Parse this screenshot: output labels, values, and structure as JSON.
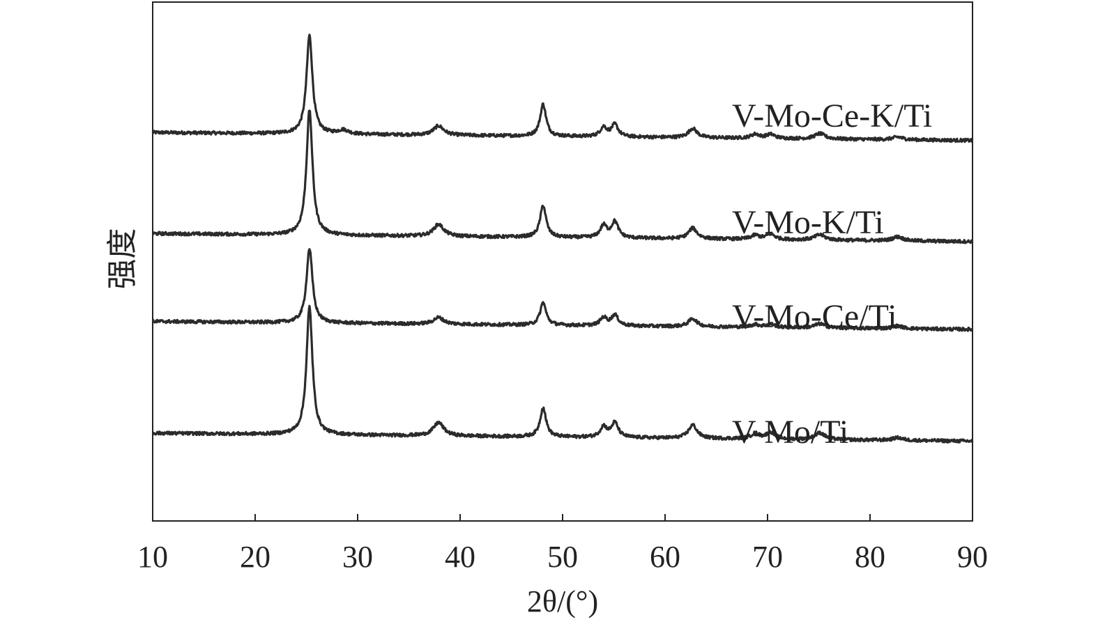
{
  "chart_data": {
    "type": "line",
    "xlabel": "2θ/(°)",
    "ylabel": "强度",
    "xlim": [
      10,
      90
    ],
    "x_ticks": [
      10,
      20,
      30,
      40,
      50,
      60,
      70,
      80,
      90
    ],
    "y_ticks_shown": false,
    "grid": false,
    "legend": "none; series names are printed next to their curves",
    "series": [
      {
        "name": "V-Mo-Ce-K/Ti",
        "baseline_start": 0.86,
        "baseline_end": 0.83,
        "peaks": [
          {
            "x": 25.3,
            "height": 0.37,
            "width": 0.35
          },
          {
            "x": 28.6,
            "height": 0.015,
            "width": 0.6
          },
          {
            "x": 37.9,
            "height": 0.035,
            "width": 0.6
          },
          {
            "x": 48.1,
            "height": 0.12,
            "width": 0.35
          },
          {
            "x": 54.0,
            "height": 0.035,
            "width": 0.4
          },
          {
            "x": 55.1,
            "height": 0.045,
            "width": 0.4
          },
          {
            "x": 62.7,
            "height": 0.035,
            "width": 0.5
          },
          {
            "x": 68.8,
            "height": 0.015,
            "width": 0.5
          },
          {
            "x": 70.3,
            "height": 0.015,
            "width": 0.5
          },
          {
            "x": 75.1,
            "height": 0.02,
            "width": 0.6
          },
          {
            "x": 82.7,
            "height": 0.01,
            "width": 0.6
          }
        ]
      },
      {
        "name": "V-Mo-K/Ti",
        "baseline_start": 0.48,
        "baseline_end": 0.45,
        "peaks": [
          {
            "x": 25.3,
            "height": 0.47,
            "width": 0.35
          },
          {
            "x": 37.9,
            "height": 0.045,
            "width": 0.6
          },
          {
            "x": 48.1,
            "height": 0.12,
            "width": 0.35
          },
          {
            "x": 54.0,
            "height": 0.045,
            "width": 0.4
          },
          {
            "x": 55.1,
            "height": 0.06,
            "width": 0.4
          },
          {
            "x": 62.7,
            "height": 0.04,
            "width": 0.5
          },
          {
            "x": 68.8,
            "height": 0.015,
            "width": 0.5
          },
          {
            "x": 70.3,
            "height": 0.02,
            "width": 0.5
          },
          {
            "x": 75.1,
            "height": 0.02,
            "width": 0.6
          },
          {
            "x": 82.7,
            "height": 0.015,
            "width": 0.6
          }
        ]
      },
      {
        "name": "V-Mo-Ce/Ti",
        "baseline_start": 0.15,
        "baseline_end": 0.12,
        "peaks": [
          {
            "x": 25.3,
            "height": 0.28,
            "width": 0.35
          },
          {
            "x": 37.9,
            "height": 0.025,
            "width": 0.6
          },
          {
            "x": 48.1,
            "height": 0.085,
            "width": 0.35
          },
          {
            "x": 54.0,
            "height": 0.03,
            "width": 0.4
          },
          {
            "x": 55.1,
            "height": 0.04,
            "width": 0.4
          },
          {
            "x": 62.7,
            "height": 0.03,
            "width": 0.5
          },
          {
            "x": 68.8,
            "height": 0.01,
            "width": 0.5
          },
          {
            "x": 70.3,
            "height": 0.012,
            "width": 0.5
          },
          {
            "x": 75.1,
            "height": 0.015,
            "width": 0.6
          },
          {
            "x": 82.7,
            "height": 0.01,
            "width": 0.6
          }
        ]
      },
      {
        "name": "V-Mo/Ti",
        "baseline_start": -0.27,
        "baseline_end": -0.3,
        "peaks": [
          {
            "x": 25.3,
            "height": 0.48,
            "width": 0.35
          },
          {
            "x": 37.9,
            "height": 0.05,
            "width": 0.6
          },
          {
            "x": 48.1,
            "height": 0.11,
            "width": 0.35
          },
          {
            "x": 54.0,
            "height": 0.04,
            "width": 0.4
          },
          {
            "x": 55.1,
            "height": 0.055,
            "width": 0.4
          },
          {
            "x": 62.7,
            "height": 0.05,
            "width": 0.5
          },
          {
            "x": 68.8,
            "height": 0.02,
            "width": 0.5
          },
          {
            "x": 70.3,
            "height": 0.025,
            "width": 0.5
          },
          {
            "x": 75.1,
            "height": 0.025,
            "width": 0.6
          },
          {
            "x": 82.7,
            "height": 0.01,
            "width": 0.6
          }
        ]
      }
    ]
  }
}
